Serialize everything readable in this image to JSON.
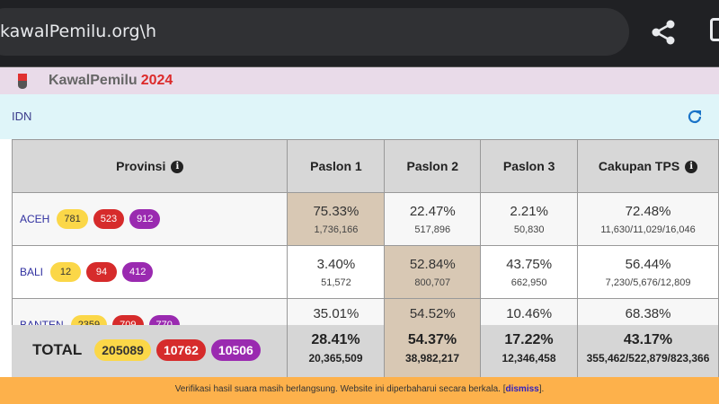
{
  "browser": {
    "url": "kawalPemilu.org\\h"
  },
  "app": {
    "brand": "KawalPemilu",
    "year": "2024"
  },
  "nav": {
    "breadcrumb": "IDN"
  },
  "table": {
    "headers": [
      "Provinsi",
      "Paslon 1",
      "Paslon 2",
      "Paslon 3",
      "Cakupan TPS"
    ],
    "rows": [
      {
        "name": "ACEH",
        "badges": [
          "781",
          "523",
          "912"
        ],
        "p1": "75.33%",
        "c1": "1,736,166",
        "p2": "22.47%",
        "c2": "517,896",
        "p3": "2.21%",
        "c3": "50,830",
        "cov": "72.48%",
        "covc": "11,630/11,029/16,046",
        "winner": 1
      },
      {
        "name": "BALI",
        "badges": [
          "12",
          "94",
          "412"
        ],
        "p1": "3.40%",
        "c1": "51,572",
        "p2": "52.84%",
        "c2": "800,707",
        "p3": "43.75%",
        "c3": "662,950",
        "cov": "56.44%",
        "covc": "7,230/5,676/12,809",
        "winner": 2
      },
      {
        "name": "BANTEN",
        "badges": [
          "2359",
          "709",
          "770"
        ],
        "p1": "35.01%",
        "p2": "54.52%",
        "p3": "10.46%",
        "cov": "68.38%",
        "winner": 2
      }
    ]
  },
  "total": {
    "label": "TOTAL",
    "badges": [
      "205089",
      "10762",
      "10506"
    ],
    "p1": "28.41%",
    "c1": "20,365,509",
    "p2": "54.37%",
    "c2": "38,982,217",
    "p3": "17.22%",
    "c3": "12,346,458",
    "cov": "43.17%",
    "covc": "355,462/522,879/823,366"
  },
  "banner": {
    "text": "Verifikasi hasil suara masih berlangsung. Website ini diperbaharui secara berkala. [",
    "link": "dismiss",
    "end": "]."
  },
  "colors": {
    "winner": "#d8c8b4",
    "badge_yellow": "#fbd748",
    "badge_red": "#d62b2b",
    "badge_purple": "#9a2ab0",
    "banner": "#fdb14b"
  }
}
